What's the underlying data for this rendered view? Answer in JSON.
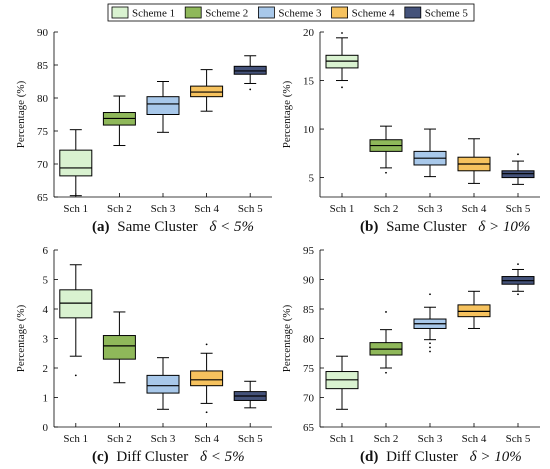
{
  "legend": {
    "items": [
      {
        "label": "Scheme 1",
        "color": "#d9f2d0"
      },
      {
        "label": "Scheme 2",
        "color": "#8fb85a"
      },
      {
        "label": "Scheme 3",
        "color": "#a8c8ea"
      },
      {
        "label": "Scheme 4",
        "color": "#f6c25e"
      },
      {
        "label": "Scheme 5",
        "color": "#44527a"
      }
    ]
  },
  "chart_data": [
    {
      "type": "box",
      "panel": "a",
      "caption_tag": "(a)",
      "caption_text": "Same Cluster",
      "caption_math": "δ < 5%",
      "ylabel": "Percentage (%)",
      "categories": [
        "Sch 1",
        "Sch 2",
        "Sch 3",
        "Sch 4",
        "Sch 5"
      ],
      "ylim": [
        65,
        90
      ],
      "yticks": [
        65,
        70,
        75,
        80,
        85,
        90
      ],
      "boxes": [
        {
          "min": 65.2,
          "q1": 68.2,
          "median": 69.4,
          "q3": 72.1,
          "max": 75.2,
          "outliers": []
        },
        {
          "min": 72.8,
          "q1": 75.9,
          "median": 76.9,
          "q3": 77.8,
          "max": 80.3,
          "outliers": []
        },
        {
          "min": 74.8,
          "q1": 77.5,
          "median": 79.1,
          "q3": 80.2,
          "max": 82.5,
          "outliers": []
        },
        {
          "min": 78.0,
          "q1": 80.2,
          "median": 80.9,
          "q3": 81.8,
          "max": 84.3,
          "outliers": []
        },
        {
          "min": 82.2,
          "q1": 83.6,
          "median": 84.1,
          "q3": 84.8,
          "max": 86.4,
          "outliers": [
            81.3
          ]
        }
      ]
    },
    {
      "type": "box",
      "panel": "b",
      "caption_tag": "(b)",
      "caption_text": "Same Cluster",
      "caption_math": "δ > 10%",
      "ylabel": "Percentage (%)",
      "categories": [
        "Sch 1",
        "Sch 2",
        "Sch 3",
        "Sch 4",
        "Sch 5"
      ],
      "ylim": [
        3,
        20
      ],
      "yticks": [
        5,
        10,
        15,
        20
      ],
      "boxes": [
        {
          "min": 15.0,
          "q1": 16.3,
          "median": 17.0,
          "q3": 17.6,
          "max": 19.4,
          "outliers": [
            14.3,
            19.9
          ]
        },
        {
          "min": 6.0,
          "q1": 7.7,
          "median": 8.3,
          "q3": 8.9,
          "max": 10.3,
          "outliers": [
            5.5
          ]
        },
        {
          "min": 5.1,
          "q1": 6.3,
          "median": 7.0,
          "q3": 7.7,
          "max": 10.0,
          "outliers": []
        },
        {
          "min": 4.4,
          "q1": 5.7,
          "median": 6.4,
          "q3": 7.1,
          "max": 9.0,
          "outliers": []
        },
        {
          "min": 4.3,
          "q1": 5.0,
          "median": 5.4,
          "q3": 5.7,
          "max": 6.7,
          "outliers": [
            7.4
          ]
        }
      ]
    },
    {
      "type": "box",
      "panel": "c",
      "caption_tag": "(c)",
      "caption_text": "Diff Cluster",
      "caption_math": "δ < 5%",
      "ylabel": "Percentage (%)",
      "categories": [
        "Sch 1",
        "Sch 2",
        "Sch 3",
        "Sch 4",
        "Sch 5"
      ],
      "ylim": [
        0,
        6
      ],
      "yticks": [
        0,
        1,
        2,
        3,
        4,
        5,
        6
      ],
      "boxes": [
        {
          "min": 2.4,
          "q1": 3.7,
          "median": 4.2,
          "q3": 4.65,
          "max": 5.5,
          "outliers": [
            1.75
          ]
        },
        {
          "min": 1.5,
          "q1": 2.3,
          "median": 2.75,
          "q3": 3.1,
          "max": 3.9,
          "outliers": []
        },
        {
          "min": 0.6,
          "q1": 1.15,
          "median": 1.4,
          "q3": 1.75,
          "max": 2.35,
          "outliers": []
        },
        {
          "min": 0.8,
          "q1": 1.4,
          "median": 1.6,
          "q3": 1.9,
          "max": 2.5,
          "outliers": [
            2.8,
            0.5
          ]
        },
        {
          "min": 0.65,
          "q1": 0.9,
          "median": 1.05,
          "q3": 1.2,
          "max": 1.55,
          "outliers": []
        }
      ]
    },
    {
      "type": "box",
      "panel": "d",
      "caption_tag": "(d)",
      "caption_text": "Diff Cluster",
      "caption_math": "δ > 10%",
      "ylabel": "Percentage (%)",
      "categories": [
        "Sch 1",
        "Sch 2",
        "Sch 3",
        "Sch 4",
        "Sch 5"
      ],
      "ylim": [
        65,
        95
      ],
      "yticks": [
        65,
        70,
        75,
        80,
        85,
        90,
        95
      ],
      "boxes": [
        {
          "min": 68.0,
          "q1": 71.5,
          "median": 73.0,
          "q3": 74.4,
          "max": 77.0,
          "outliers": []
        },
        {
          "min": 75.0,
          "q1": 77.2,
          "median": 78.2,
          "q3": 79.3,
          "max": 81.5,
          "outliers": [
            84.5,
            74.2
          ]
        },
        {
          "min": 79.8,
          "q1": 81.7,
          "median": 82.5,
          "q3": 83.3,
          "max": 85.3,
          "outliers": [
            87.5,
            79.2,
            78.5,
            77.8
          ]
        },
        {
          "min": 81.7,
          "q1": 83.7,
          "median": 84.6,
          "q3": 85.7,
          "max": 88.0,
          "outliers": []
        },
        {
          "min": 88.0,
          "q1": 89.2,
          "median": 89.8,
          "q3": 90.5,
          "max": 91.7,
          "outliers": [
            87.5,
            92.6
          ]
        }
      ]
    }
  ]
}
